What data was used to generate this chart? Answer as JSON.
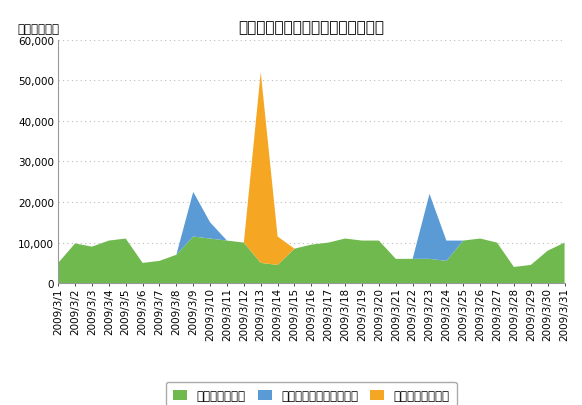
{
  "title": "要因別の日別ページビュー数の推移",
  "ylabel": "ページビュー",
  "dates": [
    "2009/3/1",
    "2009/3/2",
    "2009/3/3",
    "2009/3/4",
    "2009/3/5",
    "2009/3/6",
    "2009/3/7",
    "2009/3/8",
    "2009/3/9",
    "2009/3/10",
    "2009/3/11",
    "2009/3/12",
    "2009/3/13",
    "2009/3/14",
    "2009/3/15",
    "2009/3/16",
    "2009/3/17",
    "2009/3/18",
    "2009/3/19",
    "2009/3/20",
    "2009/3/21",
    "2009/3/22",
    "2009/3/23",
    "2009/3/24",
    "2009/3/25",
    "2009/3/26",
    "2009/3/27",
    "2009/3/28",
    "2009/3/29",
    "2009/3/30",
    "2009/3/31"
  ],
  "normal_access": [
    5000,
    9800,
    9000,
    10500,
    11000,
    5000,
    5500,
    7000,
    11500,
    11000,
    10500,
    10000,
    5000,
    4500,
    8500,
    9500,
    10000,
    11000,
    10500,
    10500,
    6000,
    6000,
    6000,
    5500,
    10500,
    11000,
    10000,
    4000,
    4500,
    8000,
    10000
  ],
  "mail_access": [
    0,
    0,
    0,
    0,
    0,
    0,
    0,
    0,
    11000,
    4000,
    0,
    0,
    0,
    0,
    0,
    0,
    0,
    0,
    0,
    0,
    0,
    0,
    16000,
    5000,
    0,
    0,
    0,
    0,
    0,
    0,
    0
  ],
  "sudden_access": [
    0,
    0,
    0,
    0,
    0,
    0,
    0,
    0,
    0,
    0,
    0,
    0,
    47000,
    7000,
    0,
    0,
    0,
    0,
    0,
    0,
    0,
    0,
    0,
    0,
    0,
    0,
    0,
    0,
    0,
    0,
    0
  ],
  "color_normal": "#70b94e",
  "color_mail": "#5b9bd5",
  "color_sudden": "#f5a623",
  "legend_normal": "通常のアクセス",
  "legend_mail": "メルマガによるアクセス",
  "legend_sudden": "突発的なアクセス",
  "ylim": [
    0,
    60000
  ],
  "yticks": [
    0,
    10000,
    20000,
    30000,
    40000,
    50000,
    60000
  ],
  "background_color": "#ffffff",
  "plot_bg_color": "#ffffff",
  "grid_color": "#bbbbbb",
  "title_fontsize": 11,
  "label_fontsize": 8.5,
  "tick_fontsize": 7.5
}
